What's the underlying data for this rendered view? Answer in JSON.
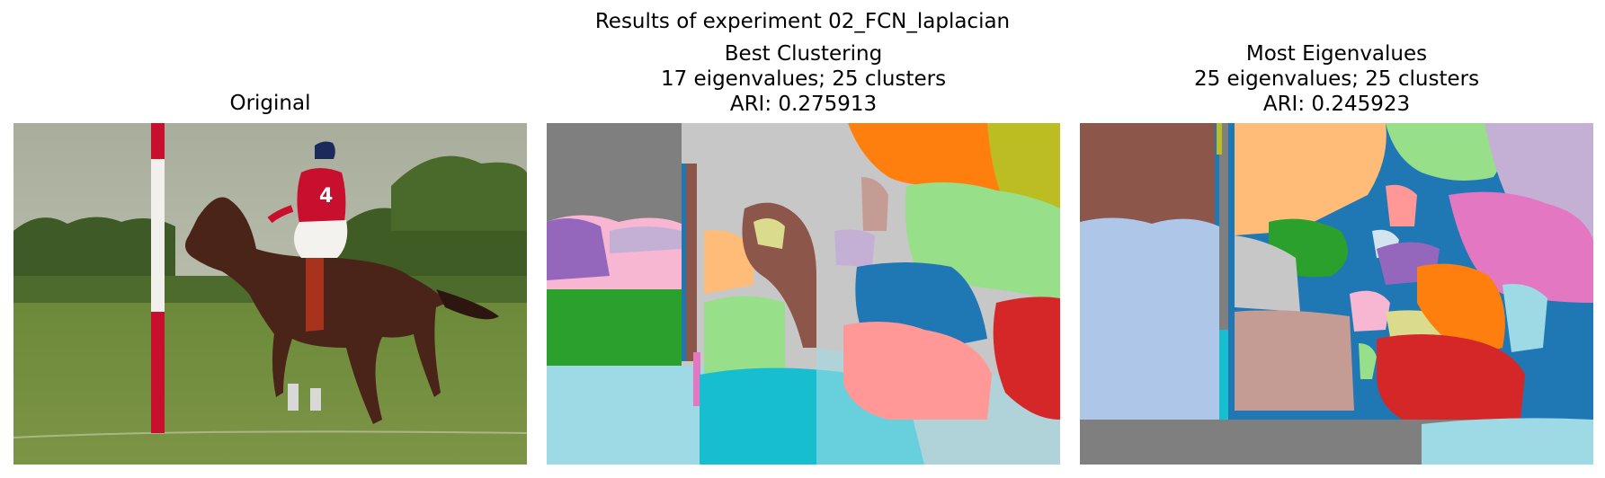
{
  "suptitle": "Results of experiment 02_FCN_laplacian",
  "panels": [
    {
      "title_lines": [
        "Original"
      ]
    },
    {
      "title_lines": [
        "Best Clustering",
        "17 eigenvalues; 25 clusters",
        "ARI: 0.275913"
      ]
    },
    {
      "title_lines": [
        "Most Eigenvalues",
        "25 eigenvalues; 25 clusters",
        "ARI: 0.245923"
      ]
    }
  ],
  "colors": {
    "tab_blue": "#1f77b4",
    "tab_orange": "#ff7f0e",
    "tab_green": "#2ca02c",
    "tab_red": "#d62728",
    "tab_purple": "#9467bd",
    "tab_brown": "#8c564b",
    "tab_pink": "#e377c2",
    "tab_gray": "#7f7f7f",
    "tab_olive": "#bcbd22",
    "tab_cyan": "#17becf",
    "light_blue": "#aec7e8",
    "light_orange": "#ffbb78",
    "light_green": "#98df8a",
    "light_red": "#ff9896",
    "light_purple": "#c5b0d5",
    "light_brown": "#c49c94",
    "light_pink": "#f7b6d2",
    "light_gray": "#c7c7c7",
    "light_olive": "#dbdb8d",
    "light_cyan": "#9edae5"
  }
}
